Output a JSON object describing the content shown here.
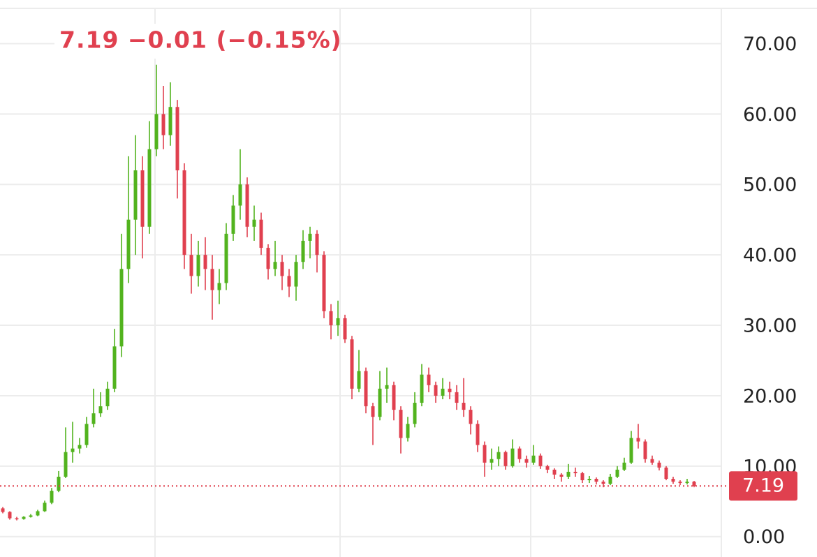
{
  "chart_data": {
    "type": "candlestick",
    "title": "7.19  −0.01 (−0.15%)",
    "up_color": "#52b31e",
    "down_color": "#e0404f",
    "ylim": [
      -2.9,
      75
    ],
    "yticks": [
      {
        "value": 0,
        "label": "0.00"
      },
      {
        "value": 10,
        "label": "10.00"
      },
      {
        "value": 20,
        "label": "20.00"
      },
      {
        "value": 30,
        "label": "30.00"
      },
      {
        "value": 40,
        "label": "40.00"
      },
      {
        "value": 50,
        "label": "50.00"
      },
      {
        "value": 60,
        "label": "60.00"
      },
      {
        "value": 70,
        "label": "70.00"
      }
    ],
    "grid": true,
    "last_price": 7.19,
    "open": [
      4.0,
      3.5,
      2.6,
      2.5,
      2.8,
      3.0,
      3.6,
      4.8,
      6.5,
      8.5,
      12.0,
      12.5,
      13.0,
      16.0,
      17.5,
      18.5,
      21.0,
      27.0,
      38.0,
      45.0,
      52.0,
      44.0,
      55.0,
      60.0,
      57.0,
      61.0,
      52.0,
      40.0,
      37.0,
      40.0,
      38.0,
      35.0,
      36.0,
      43.0,
      47.0,
      50.0,
      44.0,
      45.0,
      41.0,
      38.0,
      39.0,
      37.0,
      35.5,
      39.0,
      42.0,
      43.0,
      40.0,
      32.0,
      30.0,
      31.0,
      28.0,
      21.0,
      23.5,
      18.5,
      17.0,
      21.0,
      21.5,
      18.0,
      14.0,
      16.0,
      19.0,
      23.0,
      21.5,
      20.0,
      21.0,
      20.5,
      19.0,
      18.0,
      16.0,
      13.0,
      10.5,
      11.0,
      12.0,
      10.0,
      12.5,
      11.0,
      10.5,
      11.5,
      10.0,
      9.5,
      8.8,
      8.5,
      9.2,
      9.0,
      8.0,
      8.2,
      7.8,
      7.5,
      8.5,
      9.5,
      10.5,
      14.0,
      13.5,
      11.0,
      10.5,
      9.8,
      8.2,
      7.8,
      7.6,
      7.8
    ],
    "high": [
      4.2,
      3.6,
      2.8,
      2.9,
      3.2,
      3.8,
      5.1,
      6.9,
      9.3,
      15.5,
      16.3,
      14.0,
      17.0,
      21.0,
      20.5,
      22.0,
      29.5,
      43.0,
      54.0,
      57.0,
      54.0,
      59.0,
      67.0,
      64.0,
      64.5,
      62.0,
      53.0,
      43.0,
      42.0,
      42.5,
      40.0,
      38.0,
      44.5,
      48.5,
      55.0,
      51.0,
      47.0,
      46.0,
      41.5,
      42.0,
      40.0,
      38.0,
      40.0,
      43.5,
      44.0,
      43.5,
      40.5,
      33.0,
      33.5,
      31.5,
      28.5,
      26.5,
      24.0,
      19.0,
      23.5,
      24.0,
      22.0,
      18.5,
      17.0,
      20.5,
      24.5,
      24.0,
      22.0,
      22.5,
      22.0,
      21.5,
      22.5,
      18.5,
      16.5,
      13.5,
      12.5,
      12.8,
      12.2,
      13.8,
      12.8,
      11.5,
      13.0,
      11.8,
      10.2,
      9.7,
      9.0,
      10.3,
      9.8,
      9.2,
      8.6,
      8.4,
      8.0,
      8.9,
      10.0,
      11.2,
      15.0,
      16.0,
      13.8,
      11.5,
      10.8,
      10.0,
      8.5,
      8.0,
      8.2,
      7.9
    ],
    "low": [
      3.3,
      2.4,
      2.3,
      2.4,
      2.7,
      2.9,
      3.5,
      4.6,
      6.3,
      8.3,
      10.5,
      11.8,
      12.6,
      15.5,
      17.0,
      18.0,
      20.5,
      25.5,
      36.0,
      40.0,
      39.5,
      43.0,
      54.0,
      55.0,
      55.5,
      48.0,
      38.0,
      34.5,
      35.5,
      35.0,
      30.8,
      33.0,
      35.0,
      42.0,
      45.0,
      42.5,
      42.0,
      40.0,
      36.5,
      37.0,
      35.0,
      34.0,
      33.5,
      38.0,
      39.5,
      37.5,
      31.0,
      28.0,
      28.5,
      27.5,
      19.5,
      20.5,
      17.5,
      13.0,
      16.5,
      19.0,
      16.5,
      11.8,
      13.5,
      15.5,
      18.5,
      20.5,
      19.0,
      19.5,
      19.5,
      18.0,
      17.0,
      14.5,
      12.0,
      8.5,
      9.5,
      10.0,
      9.5,
      9.8,
      10.5,
      9.8,
      10.2,
      9.6,
      9.0,
      8.2,
      7.8,
      8.2,
      8.5,
      7.6,
      7.6,
      7.4,
      7.0,
      7.3,
      8.3,
      9.3,
      10.3,
      12.5,
      10.5,
      10.2,
      9.4,
      8.0,
      7.5,
      7.3,
      7.4,
      7.0
    ],
    "close": [
      3.5,
      2.6,
      2.5,
      2.8,
      3.0,
      3.6,
      4.8,
      6.5,
      8.5,
      12.0,
      12.5,
      13.0,
      16.0,
      17.5,
      18.5,
      21.0,
      27.0,
      38.0,
      45.0,
      52.0,
      44.0,
      55.0,
      60.0,
      57.0,
      61.0,
      52.0,
      40.0,
      37.0,
      40.0,
      38.0,
      35.0,
      36.0,
      43.0,
      47.0,
      50.0,
      44.0,
      45.0,
      41.0,
      38.0,
      39.0,
      37.0,
      35.5,
      39.0,
      42.0,
      43.0,
      40.0,
      32.0,
      30.0,
      31.0,
      28.0,
      21.0,
      23.5,
      18.5,
      17.0,
      21.0,
      21.5,
      18.0,
      14.0,
      16.0,
      19.0,
      23.0,
      21.5,
      20.0,
      21.0,
      20.5,
      19.0,
      18.0,
      16.0,
      13.0,
      10.5,
      11.0,
      12.0,
      10.0,
      12.5,
      11.0,
      10.5,
      11.5,
      10.0,
      9.5,
      8.8,
      8.5,
      9.2,
      9.0,
      8.0,
      8.2,
      7.8,
      7.5,
      8.5,
      9.5,
      10.5,
      14.0,
      13.5,
      11.0,
      10.5,
      9.8,
      8.2,
      7.8,
      7.6,
      7.8,
      7.19
    ]
  }
}
